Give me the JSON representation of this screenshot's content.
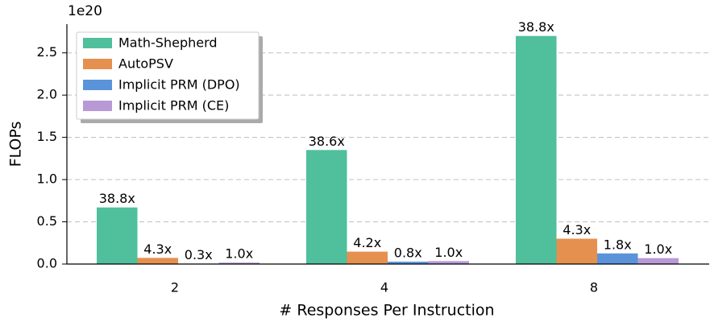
{
  "chart_data": {
    "type": "bar",
    "y_offset_label": "1e20",
    "xlabel": "# Responses Per Instruction",
    "ylabel": "FLOPs",
    "categories": [
      "2",
      "4",
      "8"
    ],
    "series": [
      {
        "name": "Math-Shepherd",
        "color": "#4fbf9c",
        "values": [
          0.67,
          1.35,
          2.7
        ],
        "bar_labels": [
          "38.8x",
          "38.6x",
          "38.8x"
        ]
      },
      {
        "name": "AutoPSV",
        "color": "#e5904f",
        "values": [
          0.073,
          0.147,
          0.3
        ],
        "bar_labels": [
          "4.3x",
          "4.2x",
          "4.3x"
        ]
      },
      {
        "name": "Implicit PRM (DPO)",
        "color": "#5b93db",
        "values": [
          0.005,
          0.028,
          0.126
        ],
        "bar_labels": [
          "0.3x",
          "0.8x",
          "1.8x"
        ]
      },
      {
        "name": "Implicit PRM (CE)",
        "color": "#b899d6",
        "values": [
          0.017,
          0.035,
          0.07
        ],
        "bar_labels": [
          "1.0x",
          "1.0x",
          "1.0x"
        ]
      }
    ],
    "ylim": [
      0,
      2.84
    ],
    "yticks": [
      {
        "value": 0,
        "label": "0.0"
      },
      0.5,
      {
        "value": 1,
        "label": "1.0"
      },
      1.5,
      {
        "value": 2,
        "label": "2.0"
      },
      2.5
    ],
    "grid": true,
    "legend": "upper left"
  }
}
